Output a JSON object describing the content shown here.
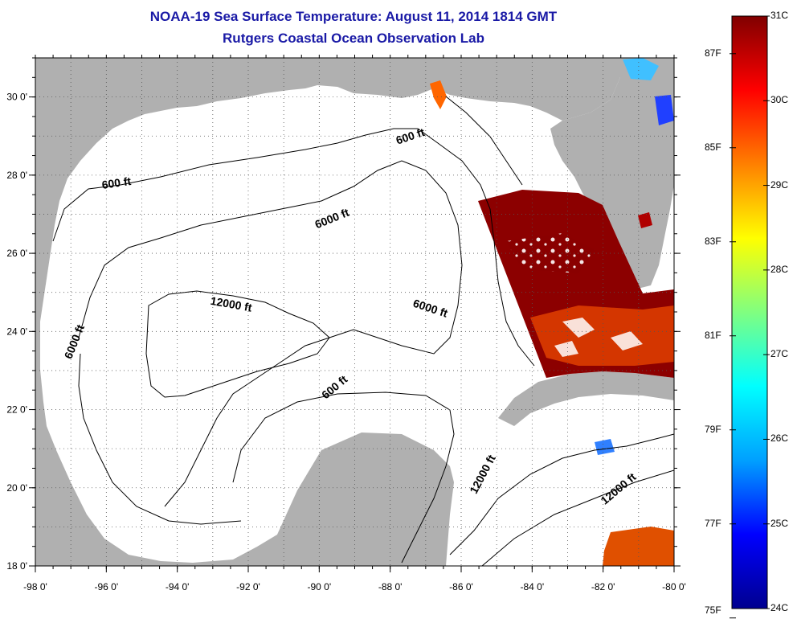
{
  "header": {
    "title": "NOAA-19 Sea Surface Temperature:  August 11, 2014 1814 GMT",
    "subtitle": "Rutgers Coastal Ocean Observation Lab"
  },
  "map": {
    "lon_range": [
      -98,
      -80
    ],
    "lat_range": [
      18,
      31
    ],
    "x_ticks": [
      "-98 0'",
      "-96 0'",
      "-94 0'",
      "-92 0'",
      "-90 0'",
      "-88 0'",
      "-86 0'",
      "-84 0'",
      "-82 0'",
      "-80 0'"
    ],
    "y_ticks": [
      "18 0'",
      "20 0'",
      "22 0'",
      "24 0'",
      "26 0'",
      "28 0'",
      "30 0'"
    ],
    "grid": "dotted",
    "land_color": "#b0b0b0",
    "ocean_color": "#ffffff",
    "contour_labels": [
      {
        "text": "600 ft",
        "lon": -87.4,
        "lat": 28.9,
        "angle": -18
      },
      {
        "text": "600 ft",
        "lon": -95.7,
        "lat": 27.7,
        "angle": -8
      },
      {
        "text": "6000 ft",
        "lon": -89.6,
        "lat": 26.8,
        "angle": -22
      },
      {
        "text": "12000 ft",
        "lon": -92.5,
        "lat": 24.6,
        "angle": 10
      },
      {
        "text": "6000 ft",
        "lon": -86.9,
        "lat": 24.5,
        "angle": 18
      },
      {
        "text": "6000 ft",
        "lon": -96.8,
        "lat": 23.7,
        "angle": -68
      },
      {
        "text": "600 ft",
        "lon": -89.5,
        "lat": 22.5,
        "angle": -40
      },
      {
        "text": "12000 ft",
        "lon": -85.3,
        "lat": 20.3,
        "angle": -62
      },
      {
        "text": "12000 ft",
        "lon": -81.5,
        "lat": 19.9,
        "angle": -40
      }
    ]
  },
  "colorbar": {
    "celsius_labels": [
      "31C",
      "30C",
      "29C",
      "28C",
      "27C",
      "26C",
      "25C",
      "24C"
    ],
    "celsius_values": [
      31,
      30,
      29,
      28,
      27,
      26,
      25,
      24
    ],
    "fahrenheit_labels": [
      "87F",
      "85F",
      "83F",
      "81F",
      "79F",
      "77F",
      "75F"
    ],
    "fahrenheit_values": [
      87,
      85,
      83,
      81,
      79,
      77,
      75
    ],
    "range_c": [
      24,
      31
    ],
    "colors": [
      "#00008f",
      "#0000ff",
      "#00a0ff",
      "#00ffff",
      "#80ff80",
      "#ffff00",
      "#ff8000",
      "#ff0000",
      "#800000"
    ]
  }
}
